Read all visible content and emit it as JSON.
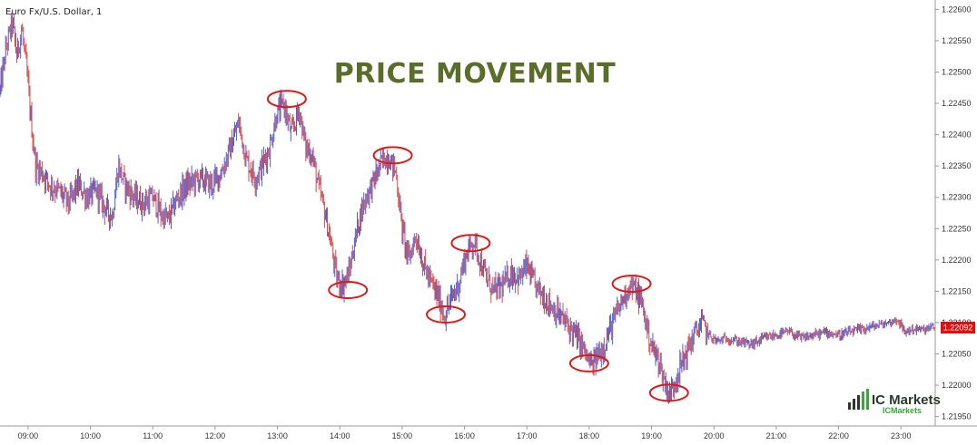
{
  "chart_data": {
    "type": "candlestick",
    "title": "Euro Fx/U.S. Dollar, 1",
    "annotation": "PRICE MOVEMENT",
    "xlabel": "",
    "ylabel": "",
    "x_ticks": [
      "09:00",
      "10:00",
      "11:00",
      "12:00",
      "13:00",
      "14:00",
      "15:00",
      "16:00",
      "17:00",
      "18:00",
      "19:00",
      "20:00",
      "21:00",
      "22:00",
      "23:00"
    ],
    "y_ticks": [
      "1.22600",
      "1.22550",
      "1.22500",
      "1.22450",
      "1.22400",
      "1.22350",
      "1.22300",
      "1.22250",
      "1.22200",
      "1.22150",
      "1.22100",
      "1.22050",
      "1.22000",
      "1.21950"
    ],
    "ylim": [
      1.21935,
      1.22615
    ],
    "xlim": [
      8.55,
      23.55
    ],
    "last_price": "1.22092",
    "grid": false,
    "path": [
      [
        8.55,
        1.2247
      ],
      [
        8.65,
        1.2254
      ],
      [
        8.75,
        1.2258
      ],
      [
        8.82,
        1.22525
      ],
      [
        8.9,
        1.2257
      ],
      [
        8.98,
        1.225
      ],
      [
        9.05,
        1.2242
      ],
      [
        9.12,
        1.2235
      ],
      [
        9.22,
        1.2234
      ],
      [
        9.35,
        1.2232
      ],
      [
        9.5,
        1.2231
      ],
      [
        9.65,
        1.2229
      ],
      [
        9.8,
        1.2232
      ],
      [
        9.95,
        1.223
      ],
      [
        10.1,
        1.2231
      ],
      [
        10.25,
        1.2228
      ],
      [
        10.35,
        1.2227
      ],
      [
        10.45,
        1.2235
      ],
      [
        10.55,
        1.2232
      ],
      [
        10.7,
        1.223
      ],
      [
        10.85,
        1.2229
      ],
      [
        11.0,
        1.223
      ],
      [
        11.15,
        1.2227
      ],
      [
        11.25,
        1.22265
      ],
      [
        11.4,
        1.223
      ],
      [
        11.55,
        1.2232
      ],
      [
        11.75,
        1.2233
      ],
      [
        11.95,
        1.2232
      ],
      [
        12.1,
        1.2234
      ],
      [
        12.25,
        1.2238
      ],
      [
        12.38,
        1.2242
      ],
      [
        12.5,
        1.2236
      ],
      [
        12.65,
        1.2233
      ],
      [
        12.75,
        1.2235
      ],
      [
        12.88,
        1.2238
      ],
      [
        12.98,
        1.2243
      ],
      [
        13.1,
        1.2245
      ],
      [
        13.22,
        1.224
      ],
      [
        13.35,
        1.2244
      ],
      [
        13.45,
        1.2238
      ],
      [
        13.55,
        1.2237
      ],
      [
        13.65,
        1.2232
      ],
      [
        13.75,
        1.2228
      ],
      [
        13.85,
        1.2223
      ],
      [
        13.95,
        1.2217
      ],
      [
        14.05,
        1.2216
      ],
      [
        14.15,
        1.2218
      ],
      [
        14.22,
        1.2222
      ],
      [
        14.32,
        1.2227
      ],
      [
        14.42,
        1.223
      ],
      [
        14.52,
        1.2232
      ],
      [
        14.62,
        1.22345
      ],
      [
        14.7,
        1.2236
      ],
      [
        14.78,
        1.22365
      ],
      [
        14.9,
        1.2234
      ],
      [
        15.0,
        1.2225
      ],
      [
        15.1,
        1.222
      ],
      [
        15.22,
        1.2224
      ],
      [
        15.35,
        1.2219
      ],
      [
        15.48,
        1.2216
      ],
      [
        15.58,
        1.2214
      ],
      [
        15.68,
        1.2211
      ],
      [
        15.8,
        1.2214
      ],
      [
        15.9,
        1.2216
      ],
      [
        16.0,
        1.222
      ],
      [
        16.08,
        1.2222
      ],
      [
        16.15,
        1.2223
      ],
      [
        16.25,
        1.222
      ],
      [
        16.35,
        1.2217
      ],
      [
        16.48,
        1.2215
      ],
      [
        16.62,
        1.2216
      ],
      [
        16.75,
        1.2218
      ],
      [
        16.88,
        1.2217
      ],
      [
        17.0,
        1.2219
      ],
      [
        17.12,
        1.2216
      ],
      [
        17.28,
        1.2214
      ],
      [
        17.45,
        1.2212
      ],
      [
        17.62,
        1.221
      ],
      [
        17.78,
        1.2208
      ],
      [
        17.9,
        1.2206
      ],
      [
        17.98,
        1.2204
      ],
      [
        18.05,
        1.2203
      ],
      [
        18.12,
        1.22045
      ],
      [
        18.22,
        1.2206
      ],
      [
        18.3,
        1.2208
      ],
      [
        18.42,
        1.2211
      ],
      [
        18.55,
        1.2214
      ],
      [
        18.65,
        1.2216
      ],
      [
        18.75,
        1.2215
      ],
      [
        18.85,
        1.2213
      ],
      [
        18.95,
        1.2208
      ],
      [
        19.05,
        1.2205
      ],
      [
        19.12,
        1.2204
      ],
      [
        19.22,
        1.22
      ],
      [
        19.3,
        1.21985
      ],
      [
        19.42,
        1.2202
      ],
      [
        19.55,
        1.2205
      ],
      [
        19.68,
        1.2208
      ],
      [
        19.8,
        1.221
      ],
      [
        19.92,
        1.2208
      ],
      [
        20.05,
        1.2207
      ],
      [
        20.2,
        1.22075
      ],
      [
        20.4,
        1.2207
      ],
      [
        20.6,
        1.22065
      ],
      [
        20.8,
        1.22075
      ],
      [
        21.0,
        1.2208
      ],
      [
        21.2,
        1.22085
      ],
      [
        21.4,
        1.22075
      ],
      [
        21.6,
        1.2208
      ],
      [
        21.8,
        1.22085
      ],
      [
        22.0,
        1.2208
      ],
      [
        22.2,
        1.22085
      ],
      [
        22.4,
        1.2209
      ],
      [
        22.6,
        1.22095
      ],
      [
        22.8,
        1.221
      ],
      [
        22.95,
        1.22105
      ],
      [
        23.05,
        1.22085
      ],
      [
        23.2,
        1.2209
      ],
      [
        23.35,
        1.22088
      ],
      [
        23.5,
        1.22092
      ]
    ],
    "circled_points": [
      {
        "x": 13.15,
        "y": 1.22457
      },
      {
        "x": 14.13,
        "y": 1.22152
      },
      {
        "x": 14.85,
        "y": 1.22367
      },
      {
        "x": 15.7,
        "y": 1.22113
      },
      {
        "x": 16.1,
        "y": 1.22227
      },
      {
        "x": 18.0,
        "y": 1.22035
      },
      {
        "x": 18.68,
        "y": 1.22162
      },
      {
        "x": 19.28,
        "y": 1.21988
      }
    ]
  },
  "logo": {
    "name": "IC Markets",
    "tagline": "ICMarkets"
  },
  "colors": {
    "up_candle": "#4a5fd8",
    "down_candle": "#d84a4a",
    "annotation": "#5a6e2a",
    "circle": "#e01818",
    "last_price_bg": "#e01010",
    "axis": "#999999",
    "logo_green": "#3aa53a",
    "logo_dark": "#2a3a2a"
  }
}
